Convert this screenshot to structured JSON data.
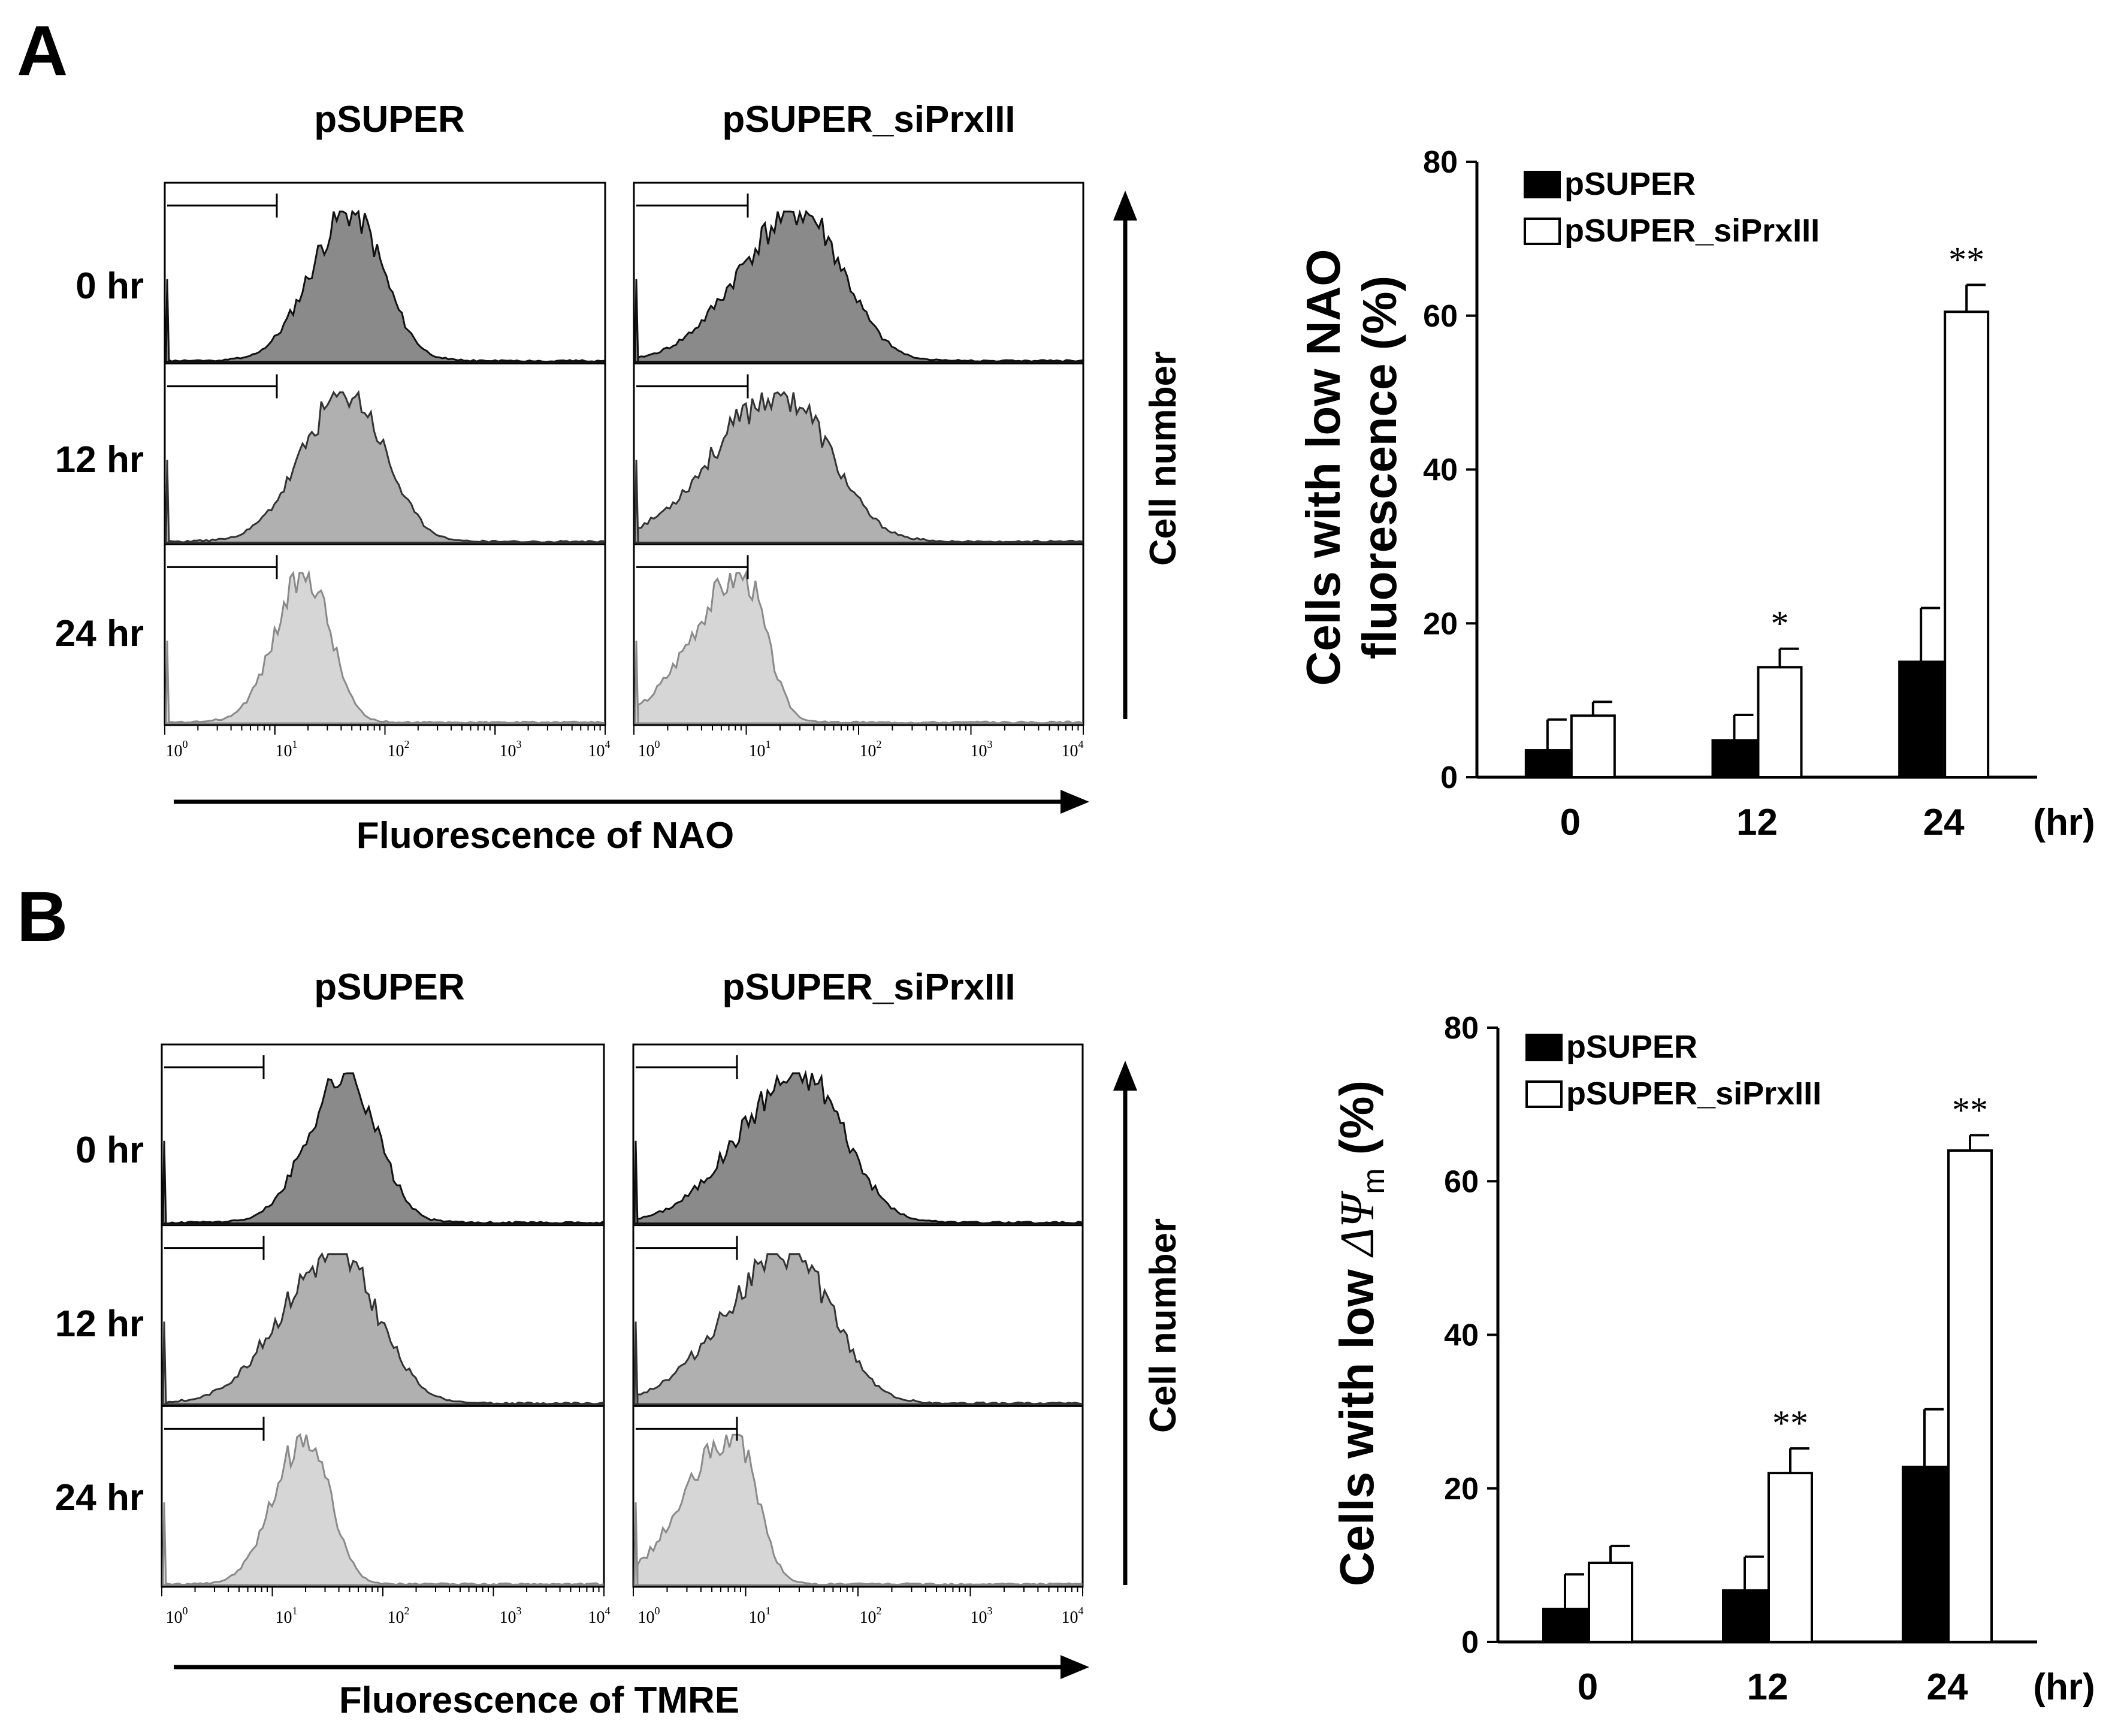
{
  "figure": {
    "panels": [
      {
        "letter": "A",
        "group_labels": [
          "pSUPER",
          "pSUPER_siPrxIII"
        ],
        "time_labels": [
          "0 hr",
          "12 hr",
          "24 hr"
        ],
        "flow_xlabel": "Fluorescence of  NAO",
        "flow_ylabel": "Cell number",
        "flow_xticks": [
          {
            "base": "10",
            "exp": "0"
          },
          {
            "base": "10",
            "exp": "1"
          },
          {
            "base": "10",
            "exp": "2"
          },
          {
            "base": "10",
            "exp": "3"
          },
          {
            "base": "10",
            "exp": "4"
          }
        ],
        "histogram_colors": [
          "#8a8a8a",
          "#b0b0b0",
          "#d6d6d6"
        ],
        "histogram_outline_colors": [
          "#111111",
          "#333333",
          "#8a8a8a"
        ]
      },
      {
        "letter": "B",
        "group_labels": [
          "pSUPER",
          "pSUPER_siPrxIII"
        ],
        "time_labels": [
          "0 hr",
          "12 hr",
          "24 hr"
        ],
        "flow_xlabel": "Fluorescence of  TMRE",
        "flow_ylabel": "Cell number",
        "flow_xticks": [
          {
            "base": "10",
            "exp": "0"
          },
          {
            "base": "10",
            "exp": "1"
          },
          {
            "base": "10",
            "exp": "2"
          },
          {
            "base": "10",
            "exp": "3"
          },
          {
            "base": "10",
            "exp": "4"
          }
        ],
        "histogram_colors": [
          "#8a8a8a",
          "#b0b0b0",
          "#d6d6d6"
        ],
        "histogram_outline_colors": [
          "#111111",
          "#333333",
          "#8a8a8a"
        ]
      }
    ]
  },
  "chart_data": [
    {
      "type": "bar",
      "panel": "A",
      "categories": [
        "0",
        "12",
        "24"
      ],
      "x_unit_label": "(hr)",
      "ylabel_lines": [
        "Cells with low NAO",
        "fluorescence (%)"
      ],
      "ylim": [
        0,
        80
      ],
      "yticks": [
        "0",
        "20",
        "40",
        "60",
        "80"
      ],
      "legend_position": "top-left",
      "series": [
        {
          "name": "pSUPER",
          "color": "#000000",
          "values": [
            3.5,
            4.8,
            15
          ],
          "errors": [
            4,
            3.3,
            7
          ]
        },
        {
          "name": "pSUPER_siPrxIII",
          "color": "#ffffff",
          "values": [
            8,
            14.3,
            60.5
          ],
          "errors": [
            1.8,
            2.4,
            3.5
          ]
        }
      ],
      "significance": [
        "",
        "*",
        "**"
      ]
    },
    {
      "type": "bar",
      "panel": "B",
      "categories": [
        "0",
        "12",
        "24"
      ],
      "x_unit_label": "(hr)",
      "ylabel_parts": {
        "prefix": "Cells with low ",
        "symbol": "ΔΨ",
        "subscript": "m",
        "suffix": " (%)"
      },
      "ylim": [
        0,
        80
      ],
      "yticks": [
        "0",
        "20",
        "40",
        "60",
        "80"
      ],
      "legend_position": "top-left",
      "series": [
        {
          "name": "pSUPER",
          "color": "#000000",
          "values": [
            4.3,
            6.7,
            22.8
          ],
          "errors": [
            4.5,
            4.4,
            7.5
          ]
        },
        {
          "name": "pSUPER_siPrxIII",
          "color": "#ffffff",
          "values": [
            10.3,
            22,
            64
          ],
          "errors": [
            2.2,
            3.2,
            2
          ]
        }
      ],
      "significance": [
        "",
        "**",
        "**"
      ]
    }
  ]
}
